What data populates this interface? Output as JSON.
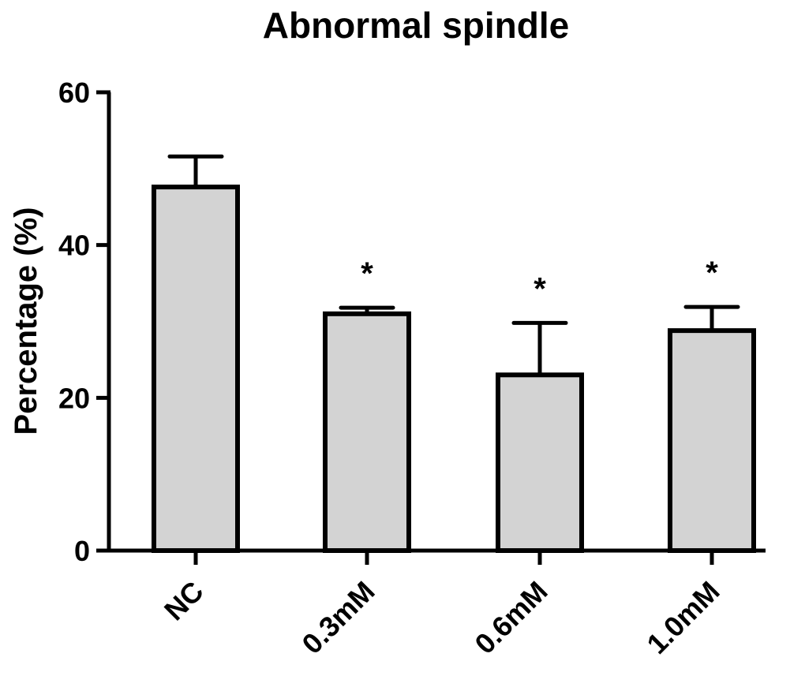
{
  "chart_data": {
    "type": "bar",
    "title": "Abnormal spindle",
    "xlabel": "",
    "ylabel": "Percentage (%)",
    "ylim": [
      0,
      60
    ],
    "yticks": [
      0,
      20,
      40,
      60
    ],
    "categories": [
      "NC",
      "0.3mM",
      "0.6mM",
      "1.0mM"
    ],
    "values": [
      47.6,
      31.0,
      23.0,
      28.8
    ],
    "errors": [
      4.0,
      0.8,
      6.8,
      3.1
    ],
    "significance": [
      "",
      "*",
      "*",
      "*"
    ],
    "bar_color": "#d3d3d3",
    "edge_color": "#000000",
    "grid": false
  }
}
